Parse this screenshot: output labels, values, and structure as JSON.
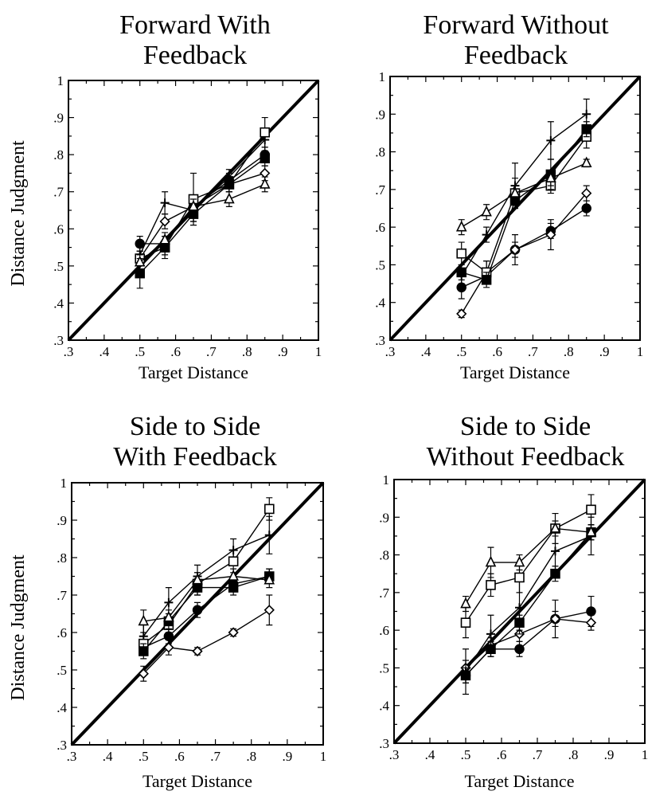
{
  "figure": {
    "ylabel": "Distance Judgment",
    "xlabel": "Target Distance"
  },
  "chart_data": [
    {
      "type": "line",
      "title": [
        "Forward With",
        "Feedback"
      ],
      "xlabel": "Target Distance",
      "ylabel": "Distance Judgment",
      "xlim": [
        0.3,
        1
      ],
      "ylim": [
        0.3,
        1
      ],
      "xticks": [
        ".3",
        ".4",
        ".5",
        ".6",
        ".7",
        ".8",
        ".9",
        "1"
      ],
      "yticks": [
        ".3",
        ".4",
        ".5",
        ".6",
        ".7",
        ".8",
        ".9",
        "1"
      ],
      "reference_line": [
        [
          0.3,
          0.3
        ],
        [
          1,
          1
        ]
      ],
      "x": [
        0.5,
        0.57,
        0.65,
        0.75,
        0.85
      ],
      "series": [
        {
          "marker": "filled-circle",
          "values": [
            0.56,
            0.56,
            0.66,
            0.73,
            0.8
          ],
          "errors": [
            0.02,
            0.02,
            0.02,
            0.02,
            0.02
          ]
        },
        {
          "marker": "open-circle",
          "values": [
            0.52,
            0.62,
            0.66,
            0.72,
            0.75
          ],
          "errors": [
            0.02,
            0.02,
            0.02,
            0.02,
            0.02
          ]
        },
        {
          "marker": "cross",
          "values": [
            0.53,
            0.67,
            0.65,
            0.74,
            0.84
          ],
          "errors": [
            0.02,
            0.03,
            0.03,
            0.02,
            0.03
          ]
        },
        {
          "marker": "open-square",
          "values": [
            0.52,
            0.55,
            0.68,
            0.72,
            0.86
          ],
          "errors": [
            0.02,
            0.03,
            0.07,
            0.02,
            0.04
          ]
        },
        {
          "marker": "filled-square",
          "values": [
            0.48,
            0.55,
            0.64,
            0.72,
            0.79
          ],
          "errors": [
            0.04,
            0.02,
            0.02,
            0.02,
            0.02
          ]
        },
        {
          "marker": "open-triangle",
          "values": [
            0.51,
            0.57,
            0.66,
            0.68,
            0.72
          ],
          "errors": [
            0.02,
            0.02,
            0.02,
            0.02,
            0.02
          ]
        }
      ]
    },
    {
      "type": "line",
      "title": [
        "Forward Without",
        "Feedback"
      ],
      "xlabel": "Target Distance",
      "ylabel": "",
      "xlim": [
        0.3,
        1
      ],
      "ylim": [
        0.3,
        1
      ],
      "xticks": [
        ".3",
        ".4",
        ".5",
        ".6",
        ".7",
        ".8",
        ".9",
        "1"
      ],
      "yticks": [
        ".3",
        ".4",
        ".5",
        ".6",
        ".7",
        ".8",
        ".9",
        "1"
      ],
      "reference_line": [
        [
          0.3,
          0.3
        ],
        [
          1,
          1
        ]
      ],
      "x": [
        0.5,
        0.57,
        0.65,
        0.75,
        0.85
      ],
      "series": [
        {
          "marker": "filled-circle",
          "values": [
            0.44,
            0.47,
            0.54,
            0.59,
            0.65
          ],
          "errors": [
            0.03,
            0.02,
            0.02,
            0.02,
            0.02
          ]
        },
        {
          "marker": "open-circle",
          "values": [
            0.37,
            0.48,
            0.54,
            0.58,
            0.69
          ],
          "errors": [
            0.01,
            0.03,
            0.04,
            0.04,
            0.02
          ]
        },
        {
          "marker": "cross",
          "values": [
            0.47,
            0.58,
            0.71,
            0.83,
            0.9
          ],
          "errors": [
            0.02,
            0.02,
            0.06,
            0.05,
            0.04
          ]
        },
        {
          "marker": "open-square",
          "values": [
            0.53,
            0.48,
            0.69,
            0.71,
            0.84
          ],
          "errors": [
            0.03,
            0.03,
            0.04,
            0.02,
            0.03
          ]
        },
        {
          "marker": "filled-square",
          "values": [
            0.48,
            0.46,
            0.67,
            0.74,
            0.86
          ],
          "errors": [
            0.02,
            0.02,
            0.02,
            0.04,
            0.02
          ]
        },
        {
          "marker": "open-triangle",
          "values": [
            0.6,
            0.64,
            0.69,
            0.73,
            0.77
          ],
          "errors": [
            0.02,
            0.02,
            0.02,
            0.02,
            0.01
          ]
        }
      ]
    },
    {
      "type": "line",
      "title": [
        "Side to Side",
        "With Feedback"
      ],
      "xlabel": "Target Distance",
      "ylabel": "Distance Judgment",
      "xlim": [
        0.3,
        1
      ],
      "ylim": [
        0.3,
        1
      ],
      "xticks": [
        ".3",
        ".4",
        ".5",
        ".6",
        ".7",
        ".8",
        ".9",
        "1"
      ],
      "yticks": [
        ".3",
        ".4",
        ".5",
        ".6",
        ".7",
        ".8",
        ".9",
        "1"
      ],
      "reference_line": [
        [
          0.3,
          0.3
        ],
        [
          1,
          1
        ]
      ],
      "x": [
        0.5,
        0.57,
        0.65,
        0.75,
        0.85
      ],
      "series": [
        {
          "marker": "filled-circle",
          "values": [
            0.56,
            0.59,
            0.66,
            0.73,
            0.75
          ],
          "errors": [
            0.02,
            0.02,
            0.02,
            0.02,
            0.02
          ]
        },
        {
          "marker": "open-circle",
          "values": [
            0.49,
            0.56,
            0.55,
            0.6,
            0.66
          ],
          "errors": [
            0.02,
            0.02,
            0.01,
            0.01,
            0.04
          ]
        },
        {
          "marker": "cross",
          "values": [
            0.59,
            0.68,
            0.75,
            0.82,
            0.86
          ],
          "errors": [
            0.03,
            0.04,
            0.03,
            0.03,
            0.05
          ]
        },
        {
          "marker": "open-square",
          "values": [
            0.57,
            0.62,
            0.73,
            0.79,
            0.93
          ],
          "errors": [
            0.02,
            0.02,
            0.03,
            0.03,
            0.03
          ]
        },
        {
          "marker": "filled-square",
          "values": [
            0.55,
            0.63,
            0.72,
            0.72,
            0.75
          ],
          "errors": [
            0.02,
            0.02,
            0.02,
            0.02,
            0.02
          ]
        },
        {
          "marker": "open-triangle",
          "values": [
            0.63,
            0.64,
            0.74,
            0.75,
            0.74
          ],
          "errors": [
            0.03,
            0.02,
            0.02,
            0.02,
            0.02
          ]
        }
      ]
    },
    {
      "type": "line",
      "title": [
        "Side to Side",
        "Without Feedback"
      ],
      "xlabel": "Target Distance",
      "ylabel": "",
      "xlim": [
        0.3,
        1
      ],
      "ylim": [
        0.3,
        1
      ],
      "xticks": [
        ".3",
        ".4",
        ".5",
        ".6",
        ".7",
        ".8",
        ".9",
        "1"
      ],
      "yticks": [
        ".3",
        ".4",
        ".5",
        ".6",
        ".7",
        ".8",
        ".9",
        "1"
      ],
      "reference_line": [
        [
          0.3,
          0.3
        ],
        [
          1,
          1
        ]
      ],
      "x": [
        0.5,
        0.57,
        0.65,
        0.75,
        0.85
      ],
      "series": [
        {
          "marker": "filled-circle",
          "values": [
            0.48,
            0.55,
            0.55,
            0.63,
            0.65
          ],
          "errors": [
            0.02,
            0.02,
            0.02,
            0.05,
            0.04
          ]
        },
        {
          "marker": "open-circle",
          "values": [
            0.5,
            0.56,
            0.59,
            0.63,
            0.62
          ],
          "errors": [
            0.02,
            0.02,
            0.02,
            0.02,
            0.02
          ]
        },
        {
          "marker": "cross",
          "values": [
            0.49,
            0.59,
            0.66,
            0.81,
            0.85
          ],
          "errors": [
            0.06,
            0.05,
            0.07,
            0.06,
            0.05
          ]
        },
        {
          "marker": "open-square",
          "values": [
            0.62,
            0.72,
            0.74,
            0.87,
            0.92
          ],
          "errors": [
            0.04,
            0.03,
            0.04,
            0.04,
            0.04
          ]
        },
        {
          "marker": "filled-square",
          "values": [
            0.48,
            0.55,
            0.62,
            0.75,
            0.86
          ],
          "errors": [
            0.02,
            0.02,
            0.02,
            0.02,
            0.02
          ]
        },
        {
          "marker": "open-triangle",
          "values": [
            0.67,
            0.78,
            0.78,
            0.87,
            0.86
          ],
          "errors": [
            0.02,
            0.04,
            0.02,
            0.02,
            0.02
          ]
        }
      ]
    }
  ]
}
